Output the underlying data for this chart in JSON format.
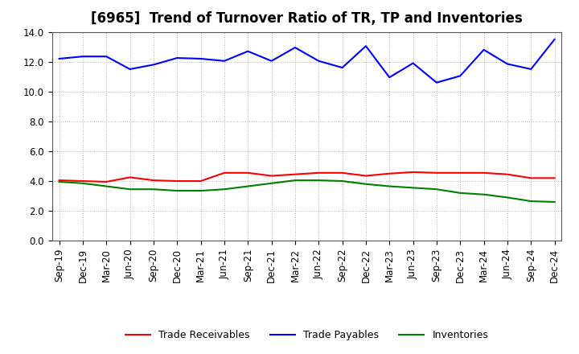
{
  "title": "[6965]  Trend of Turnover Ratio of TR, TP and Inventories",
  "labels": [
    "Sep-19",
    "Dec-19",
    "Mar-20",
    "Jun-20",
    "Sep-20",
    "Dec-20",
    "Mar-21",
    "Jun-21",
    "Sep-21",
    "Dec-21",
    "Mar-22",
    "Jun-22",
    "Sep-22",
    "Dec-22",
    "Mar-23",
    "Jun-23",
    "Sep-23",
    "Dec-23",
    "Mar-24",
    "Jun-24",
    "Sep-24",
    "Dec-24"
  ],
  "trade_receivables": [
    4.05,
    4.0,
    3.95,
    4.25,
    4.05,
    4.0,
    4.0,
    4.55,
    4.55,
    4.35,
    4.45,
    4.55,
    4.55,
    4.35,
    4.5,
    4.6,
    4.55,
    4.55,
    4.55,
    4.45,
    4.2,
    4.2
  ],
  "trade_payables": [
    12.2,
    12.35,
    12.35,
    11.5,
    11.8,
    12.25,
    12.2,
    12.05,
    12.7,
    12.05,
    12.95,
    12.05,
    11.6,
    13.05,
    10.95,
    11.9,
    10.6,
    11.05,
    12.8,
    11.85,
    11.5,
    13.5
  ],
  "inventories": [
    3.95,
    3.85,
    3.65,
    3.45,
    3.45,
    3.35,
    3.35,
    3.45,
    3.65,
    3.85,
    4.05,
    4.05,
    4.0,
    3.8,
    3.65,
    3.55,
    3.45,
    3.2,
    3.1,
    2.9,
    2.65,
    2.6
  ],
  "ylim": [
    0.0,
    14.0
  ],
  "yticks": [
    0.0,
    2.0,
    4.0,
    6.0,
    8.0,
    10.0,
    12.0,
    14.0
  ],
  "tr_color": "#ff0000",
  "tp_color": "#0000ff",
  "inv_color": "#008000",
  "bg_color": "#ffffff",
  "grid_color": "#aaaaaa",
  "title_fontsize": 12,
  "legend_fontsize": 9,
  "tick_fontsize": 8.5
}
